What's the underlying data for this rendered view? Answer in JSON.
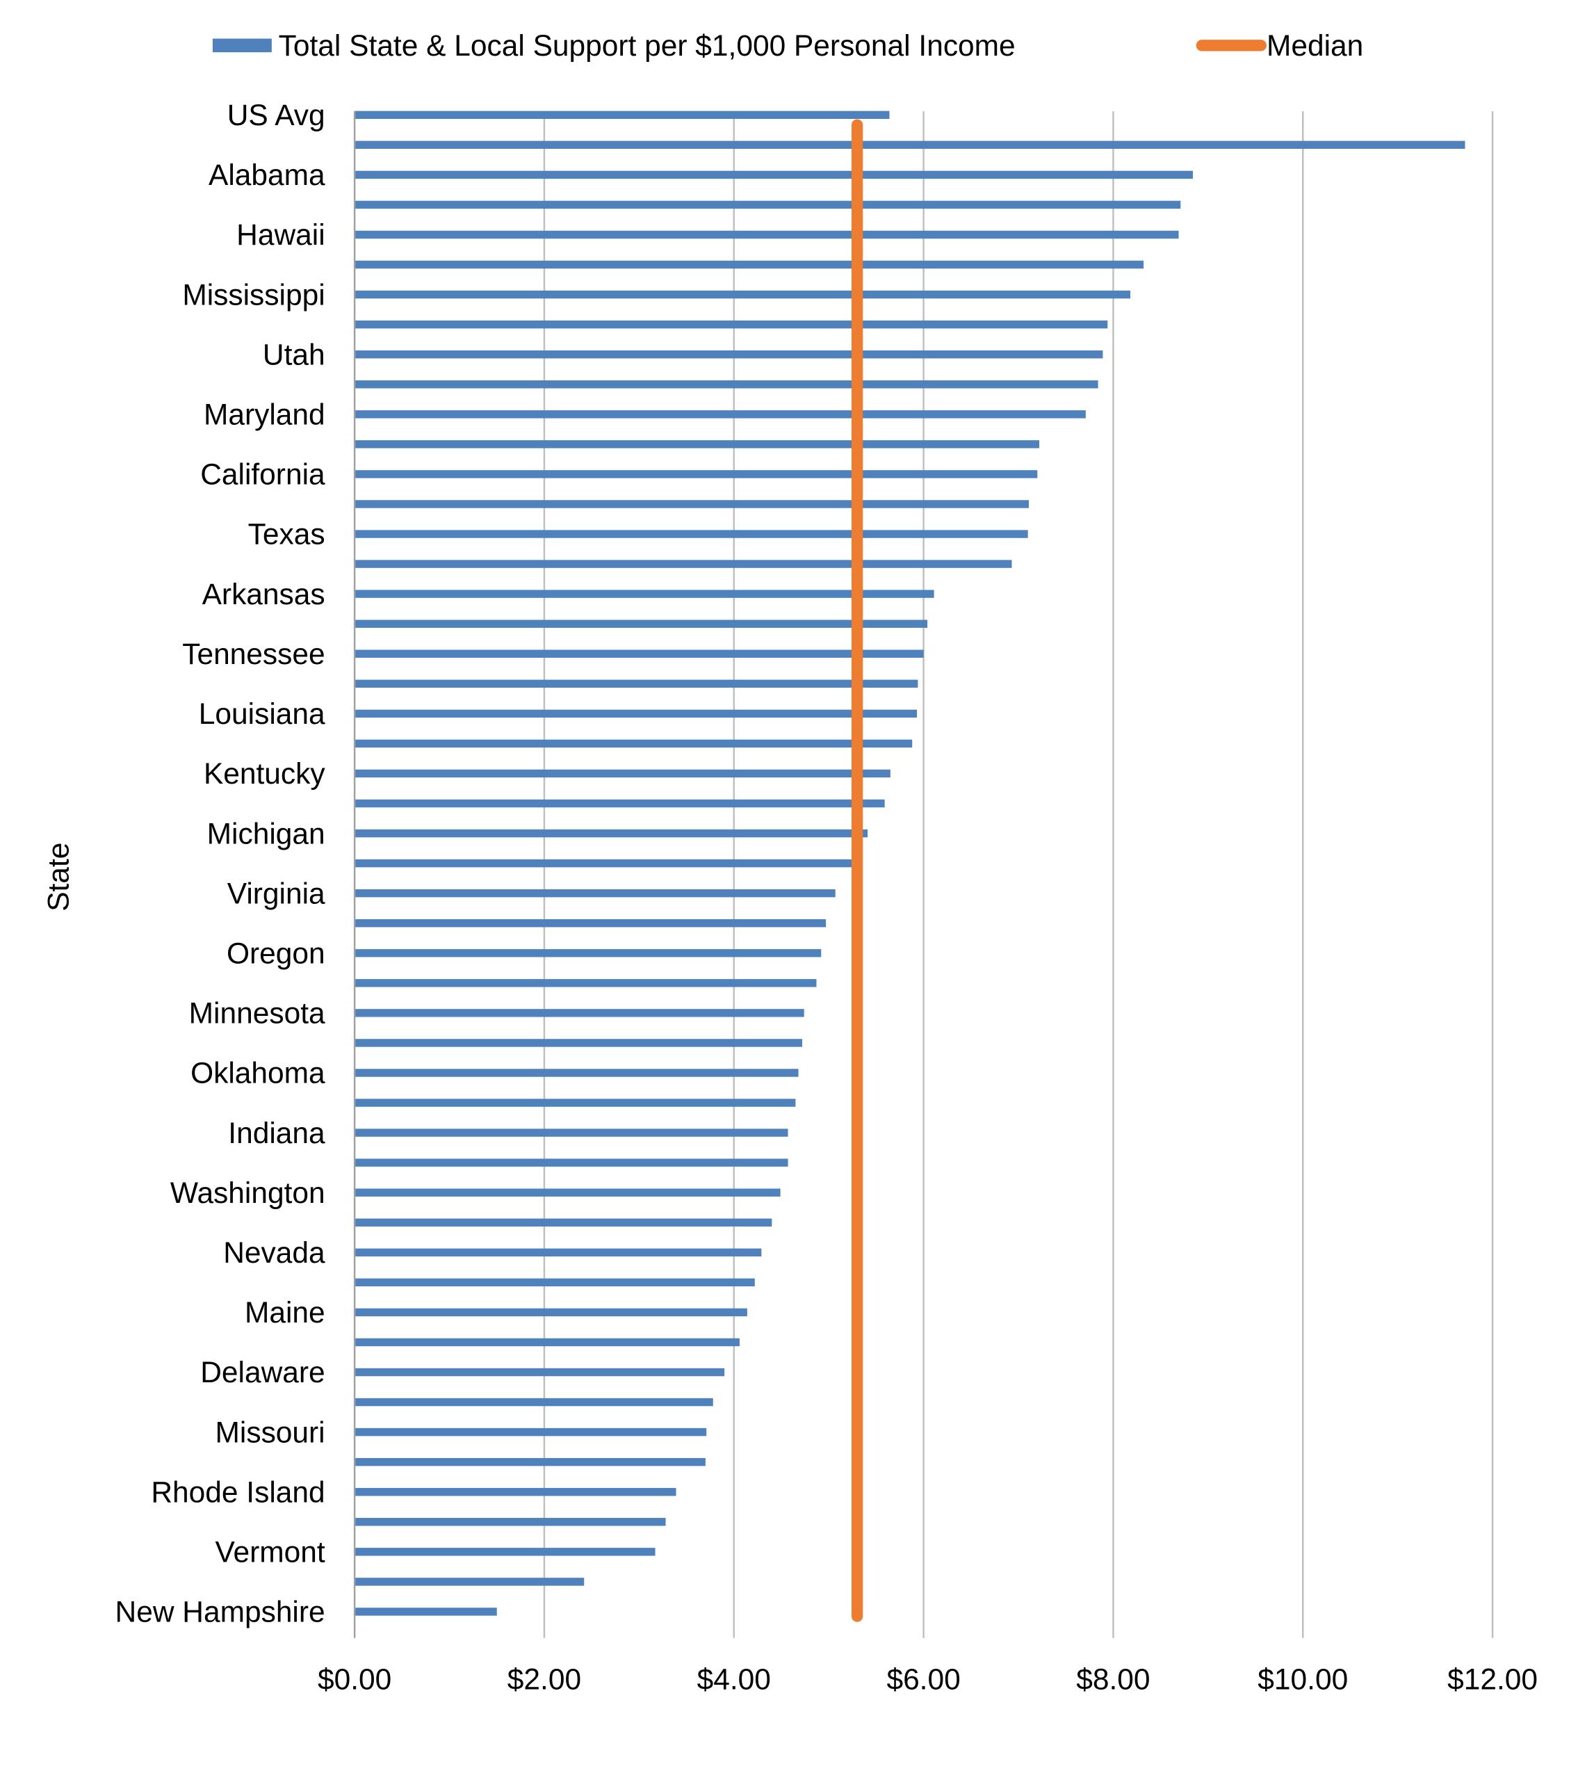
{
  "chart_data": {
    "type": "bar",
    "orientation": "horizontal",
    "title": "",
    "xlabel": "",
    "ylabel": "State",
    "xlim": [
      0,
      12
    ],
    "x_ticks": [
      "$0.00",
      "$2.00",
      "$4.00",
      "$6.00",
      "$8.00",
      "$10.00",
      "$12.00"
    ],
    "grid": "vertical",
    "legend_position": "top",
    "categories": [
      "US Avg",
      "",
      "Alabama",
      "",
      "Hawaii",
      "",
      "Mississippi",
      "",
      "Utah",
      "",
      "Maryland",
      "",
      "California",
      "",
      "Texas",
      "",
      "Arkansas",
      "",
      "Tennessee",
      "",
      "Louisiana",
      "",
      "Kentucky",
      "",
      "Michigan",
      "",
      "Virginia",
      "",
      "Oregon",
      "",
      "Minnesota",
      "",
      "Oklahoma",
      "",
      "Indiana",
      "",
      "Washington",
      "",
      "Nevada",
      "",
      "Maine",
      "",
      "Delaware",
      "",
      "Missouri",
      "",
      "Rhode Island",
      "",
      "Vermont",
      "",
      "New Hampshire"
    ],
    "series": [
      {
        "name": "Total State & Local Support per $1,000 Personal Income",
        "type": "bar",
        "color": "#4f81bd",
        "values": [
          5.64,
          11.71,
          8.84,
          8.71,
          8.69,
          8.32,
          8.18,
          7.94,
          7.89,
          7.84,
          7.71,
          7.22,
          7.2,
          7.11,
          7.1,
          6.93,
          6.11,
          6.04,
          6.0,
          5.94,
          5.93,
          5.88,
          5.65,
          5.59,
          5.41,
          5.25,
          5.07,
          4.97,
          4.92,
          4.87,
          4.74,
          4.72,
          4.68,
          4.65,
          4.57,
          4.57,
          4.49,
          4.4,
          4.29,
          4.22,
          4.14,
          4.06,
          3.9,
          3.78,
          3.71,
          3.7,
          3.39,
          3.28,
          3.17,
          2.42,
          1.5
        ]
      },
      {
        "name": "Median",
        "type": "line",
        "color": "#ed7d31",
        "value": 5.3
      }
    ]
  }
}
